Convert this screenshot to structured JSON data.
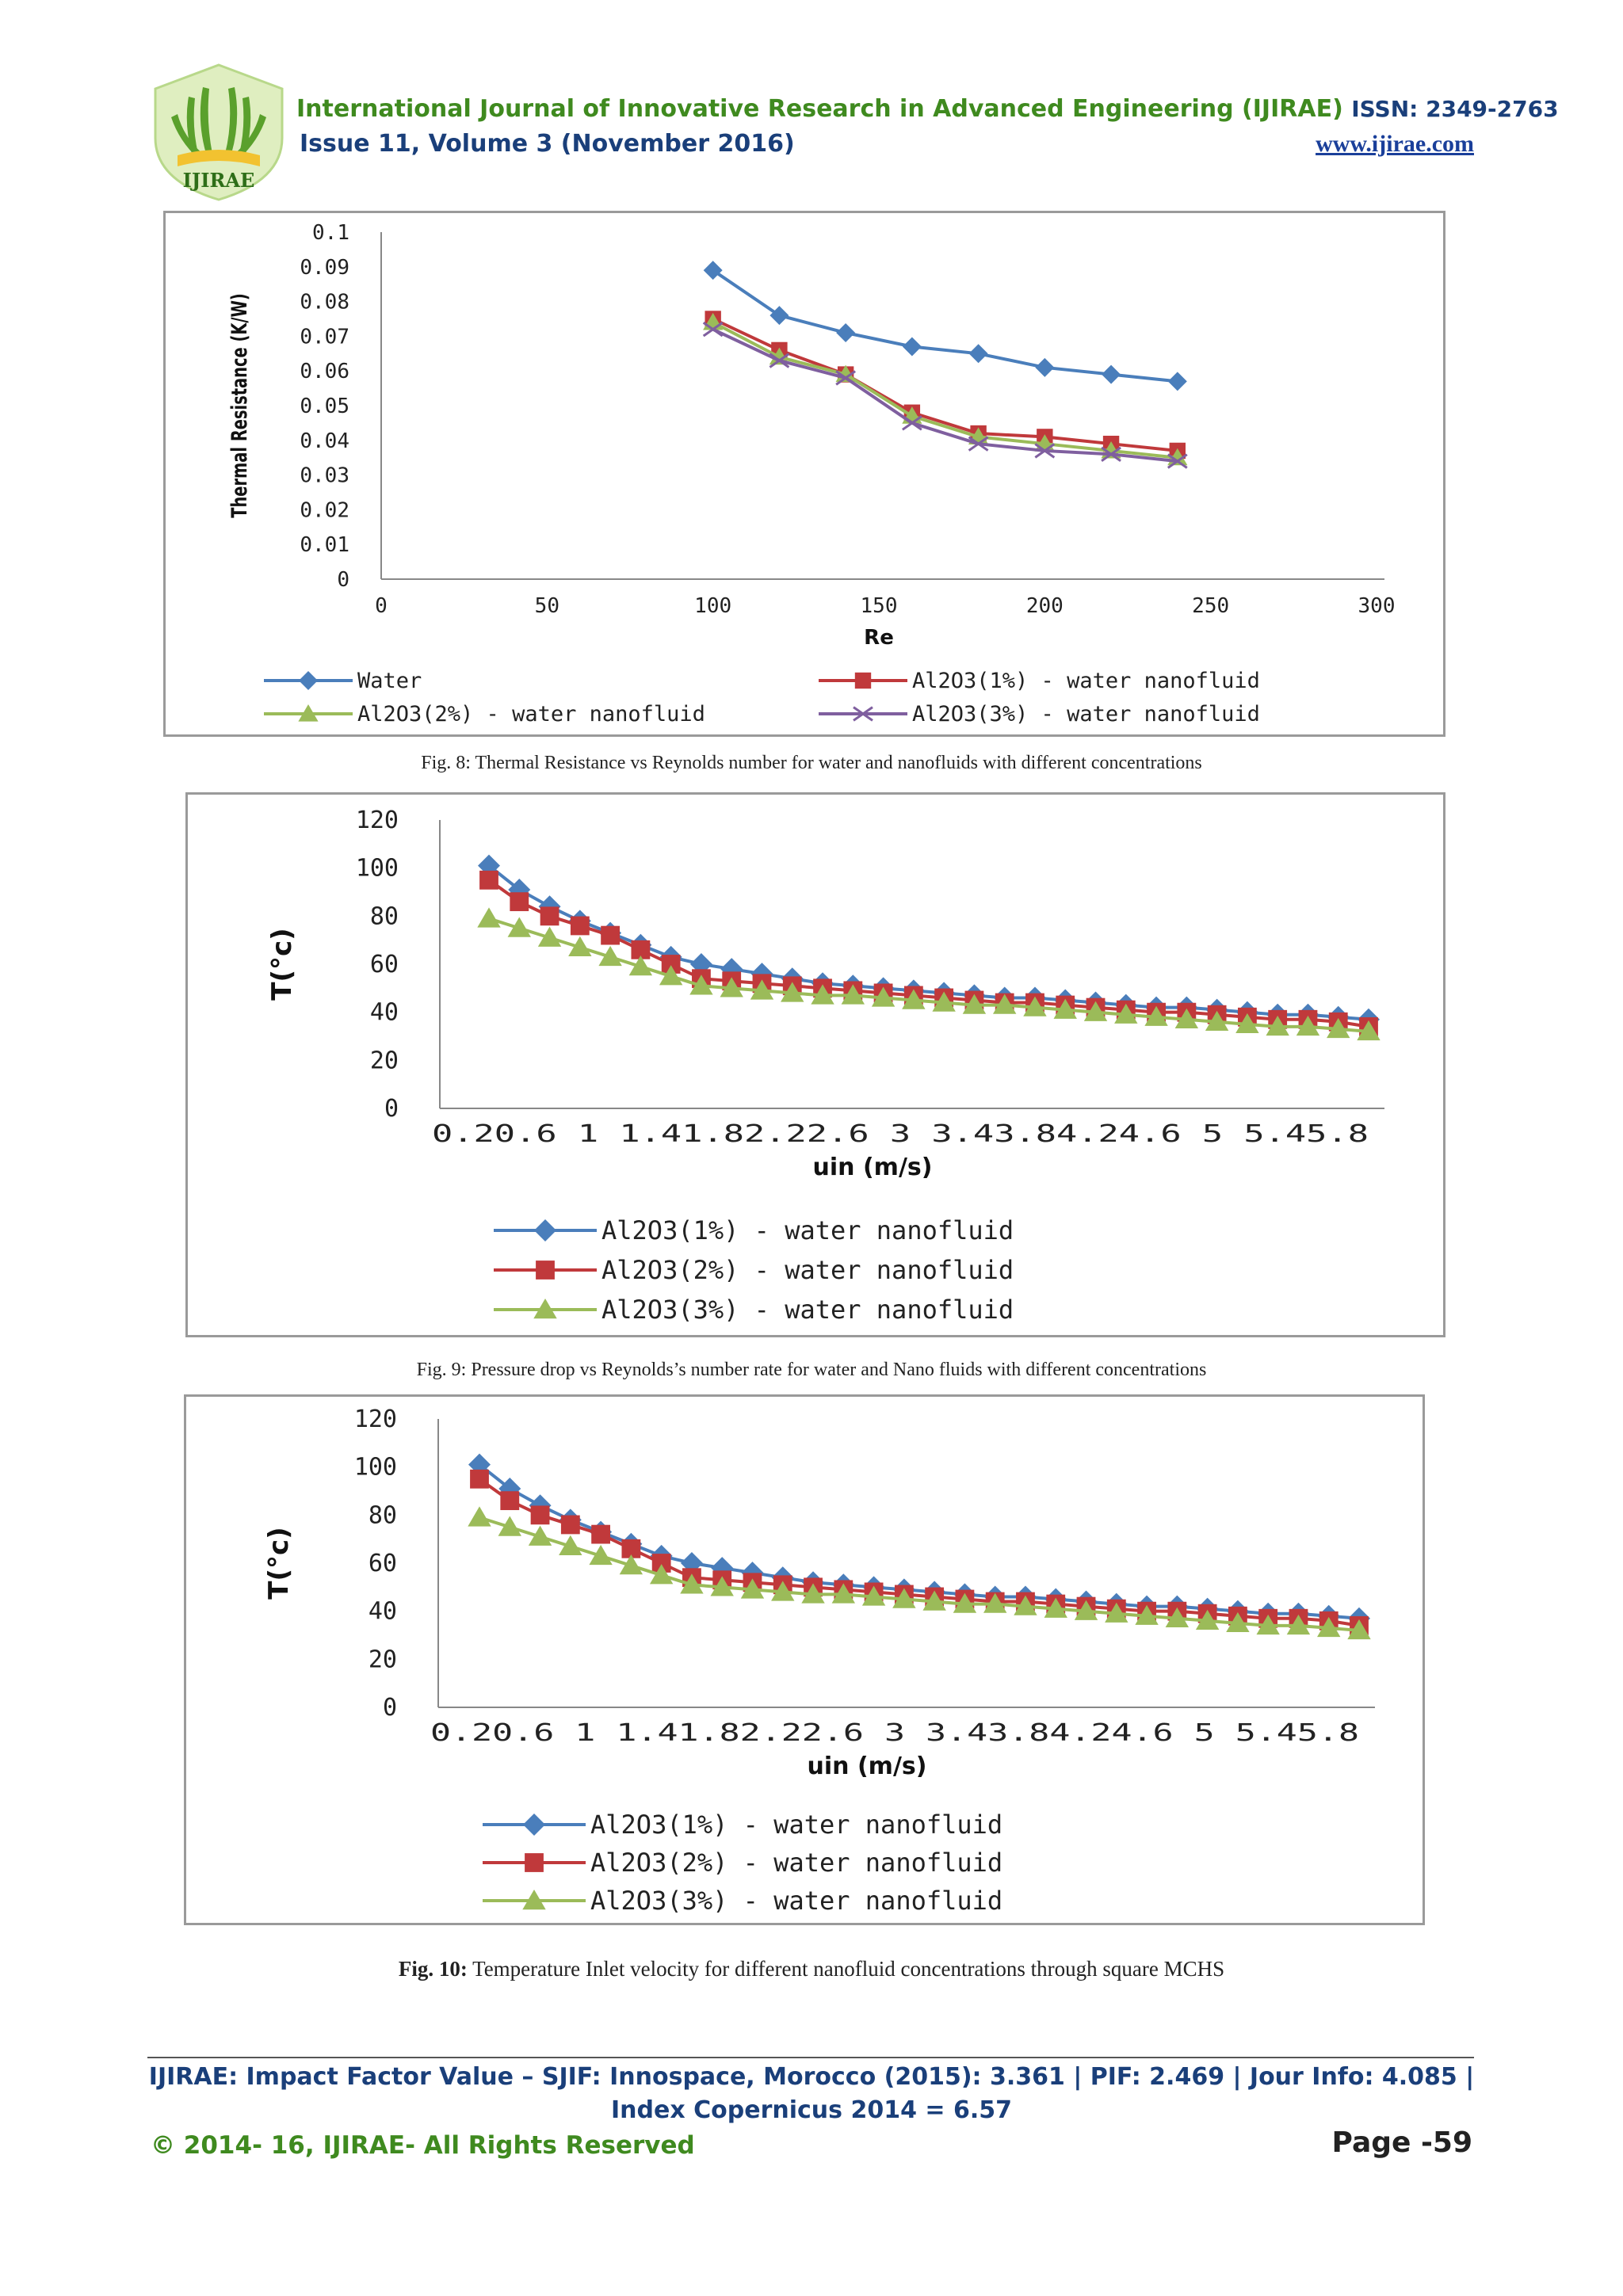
{
  "header": {
    "journal_title": "International Journal of Innovative Research in Advanced Engineering (IJIRAE)",
    "issn": "ISSN: 2349-2763",
    "issue": "Issue 11, Volume 3 (November 2016)",
    "url": "www.ijirae.com",
    "logo_text": "IJIRAE"
  },
  "figures": [
    {
      "caption": "Fig. 8: Thermal Resistance vs Reynolds number for water  and nanofluids with different concentrations"
    },
    {
      "caption": "Fig. 9: Pressure drop vs Reynolds’s number rate for water and Nano fluids with different concentrations"
    },
    {
      "caption_bold": "Fig. 10:",
      "caption_rest": " Temperature Inlet velocity for different nanofluid concentrations through square MCHS"
    }
  ],
  "colors": {
    "blue": "#4a7ebb",
    "red": "#c0393b",
    "green": "#9bbb59",
    "purple": "#7f5f9f",
    "header_green": "#3f8a1f",
    "header_navy": "#1a3f7a"
  },
  "chart_data": [
    {
      "type": "line",
      "title": "",
      "xlabel": "Re",
      "ylabel": "Thermal Resistance (K/W)",
      "xlim": [
        0,
        300
      ],
      "ylim": [
        0,
        0.1
      ],
      "x_ticks": [
        "0",
        "50",
        "100",
        "150",
        "200",
        "250",
        "300"
      ],
      "y_ticks": [
        "0",
        "0.01",
        "0.02",
        "0.03",
        "0.04",
        "0.05",
        "0.06",
        "0.07",
        "0.08",
        "0.09",
        "0.1"
      ],
      "legend_position": "bottom",
      "grid": false,
      "series": [
        {
          "name": "Water",
          "marker": "diamond",
          "color": "#4a7ebb",
          "points": [
            [
              100,
              0.089
            ],
            [
              120,
              0.076
            ],
            [
              140,
              0.071
            ],
            [
              160,
              0.067
            ],
            [
              180,
              0.065
            ],
            [
              200,
              0.061
            ],
            [
              220,
              0.059
            ],
            [
              240,
              0.057
            ]
          ]
        },
        {
          "name": "Al2O3(1%) - water nanofluid",
          "marker": "square",
          "color": "#c0393b",
          "points": [
            [
              100,
              0.075
            ],
            [
              120,
              0.066
            ],
            [
              140,
              0.059
            ],
            [
              160,
              0.048
            ],
            [
              180,
              0.042
            ],
            [
              200,
              0.041
            ],
            [
              220,
              0.039
            ],
            [
              240,
              0.037
            ]
          ]
        },
        {
          "name": "Al2O3(2%) - water nanofluid",
          "marker": "triangle",
          "color": "#9bbb59",
          "points": [
            [
              100,
              0.074
            ],
            [
              120,
              0.064
            ],
            [
              140,
              0.059
            ],
            [
              160,
              0.047
            ],
            [
              180,
              0.041
            ],
            [
              200,
              0.039
            ],
            [
              220,
              0.037
            ],
            [
              240,
              0.035
            ]
          ]
        },
        {
          "name": "Al2O3(3%) - water nanofluid",
          "marker": "x",
          "color": "#7f5f9f",
          "points": [
            [
              100,
              0.072
            ],
            [
              120,
              0.063
            ],
            [
              140,
              0.058
            ],
            [
              160,
              0.045
            ],
            [
              180,
              0.039
            ],
            [
              200,
              0.037
            ],
            [
              220,
              0.036
            ],
            [
              240,
              0.034
            ]
          ]
        }
      ]
    },
    {
      "type": "line",
      "title": "",
      "xlabel": "uin (m/s)",
      "ylabel": "T(°c)",
      "ylim": [
        0,
        120
      ],
      "y_ticks": [
        "0",
        "20",
        "40",
        "60",
        "80",
        "100",
        "120"
      ],
      "x_tick_text": "0.20.6  1  1.41.82.22.6  3  3.43.84.24.6  5  5.45.8",
      "x_categories": [
        "0.2",
        "0.4",
        "0.6",
        "0.8",
        "1",
        "1.2",
        "1.4",
        "1.6",
        "1.8",
        "2",
        "2.2",
        "2.4",
        "2.6",
        "2.8",
        "3",
        "3.2",
        "3.4",
        "3.6",
        "3.8",
        "4",
        "4.2",
        "4.4",
        "4.6",
        "4.8",
        "5",
        "5.2",
        "5.4",
        "5.6",
        "5.8",
        "6"
      ],
      "legend_position": "bottom",
      "grid": false,
      "series": [
        {
          "name": "Al2O3(1%) - water nanofluid",
          "marker": "diamond",
          "color": "#4a7ebb",
          "values": [
            101,
            91,
            84,
            78,
            73,
            68,
            63,
            60,
            58,
            56,
            54,
            52,
            51,
            50,
            49,
            48,
            47,
            46,
            46,
            45,
            44,
            43,
            42,
            42,
            41,
            40,
            39,
            39,
            38,
            37
          ]
        },
        {
          "name": "Al2O3(2%) - water nanofluid",
          "marker": "square",
          "color": "#c0393b",
          "values": [
            95,
            86,
            80,
            76,
            72,
            66,
            60,
            54,
            53,
            52,
            51,
            50,
            49,
            48,
            47,
            46,
            45,
            44,
            44,
            43,
            42,
            41,
            40,
            40,
            39,
            38,
            37,
            37,
            36,
            34
          ]
        },
        {
          "name": "Al2O3(3%) - water nanofluid",
          "marker": "triangle",
          "color": "#9bbb59",
          "values": [
            79,
            75,
            71,
            67,
            63,
            59,
            55,
            51,
            50,
            49,
            48,
            47,
            47,
            46,
            45,
            44,
            43,
            43,
            42,
            41,
            40,
            39,
            38,
            37,
            36,
            35,
            34,
            34,
            33,
            32
          ]
        }
      ]
    },
    {
      "type": "line",
      "title": "",
      "xlabel": "uin (m/s)",
      "ylabel": "T(°c)",
      "ylim": [
        0,
        120
      ],
      "y_ticks": [
        "0",
        "20",
        "40",
        "60",
        "80",
        "100",
        "120"
      ],
      "x_tick_text": "0.20.6  1  1.41.82.22.6  3  3.43.84.24.6  5  5.45.8",
      "x_categories": [
        "0.2",
        "0.4",
        "0.6",
        "0.8",
        "1",
        "1.2",
        "1.4",
        "1.6",
        "1.8",
        "2",
        "2.2",
        "2.4",
        "2.6",
        "2.8",
        "3",
        "3.2",
        "3.4",
        "3.6",
        "3.8",
        "4",
        "4.2",
        "4.4",
        "4.6",
        "4.8",
        "5",
        "5.2",
        "5.4",
        "5.6",
        "5.8",
        "6"
      ],
      "legend_position": "bottom",
      "grid": false,
      "series": [
        {
          "name": "Al2O3(1%) - water nanofluid",
          "marker": "diamond",
          "color": "#4a7ebb",
          "values": [
            101,
            91,
            84,
            78,
            73,
            68,
            63,
            60,
            58,
            56,
            54,
            52,
            51,
            50,
            49,
            48,
            47,
            46,
            46,
            45,
            44,
            43,
            42,
            42,
            41,
            40,
            39,
            39,
            38,
            37
          ]
        },
        {
          "name": "Al2O3(2%) - water nanofluid",
          "marker": "square",
          "color": "#c0393b",
          "values": [
            95,
            86,
            80,
            76,
            72,
            66,
            60,
            54,
            53,
            52,
            51,
            50,
            49,
            48,
            47,
            46,
            45,
            44,
            44,
            43,
            42,
            41,
            40,
            40,
            39,
            38,
            37,
            37,
            36,
            34
          ]
        },
        {
          "name": "Al2O3(3%) - water nanofluid",
          "marker": "triangle",
          "color": "#9bbb59",
          "values": [
            79,
            75,
            71,
            67,
            63,
            59,
            55,
            51,
            50,
            49,
            48,
            47,
            47,
            46,
            45,
            44,
            43,
            43,
            42,
            41,
            40,
            39,
            38,
            37,
            36,
            35,
            34,
            34,
            33,
            32
          ]
        }
      ]
    }
  ],
  "footer": {
    "impact_line1": "IJIRAE: Impact Factor Value – SJIF: Innospace, Morocco (2015): 3.361 | PIF: 2.469 | Jour Info: 4.085 |",
    "impact_line2": "Index Copernicus 2014 = 6.57",
    "copyright": "© 2014- 16, IJIRAE- All Rights Reserved",
    "page": "Page -59"
  }
}
